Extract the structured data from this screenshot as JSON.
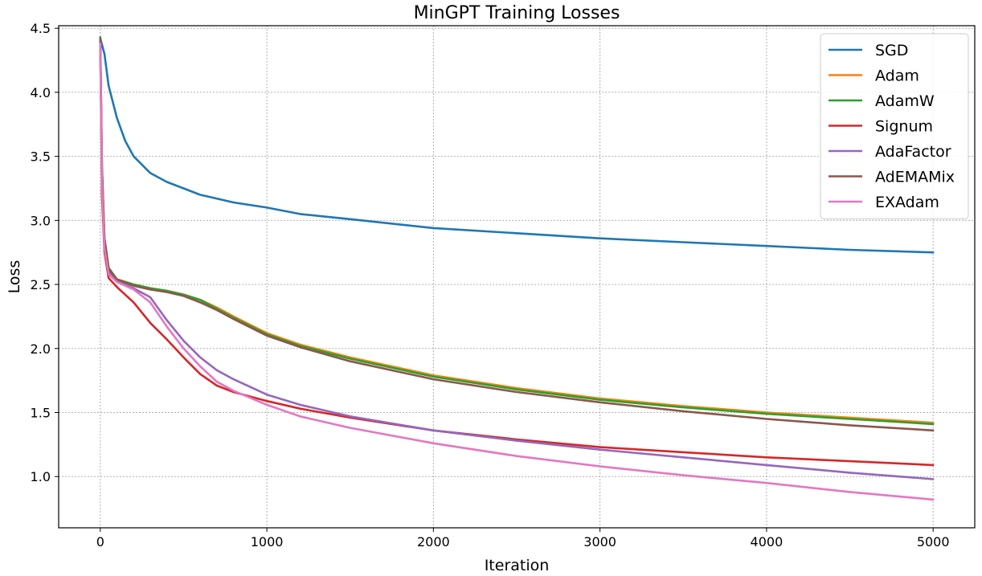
{
  "chart_data": {
    "type": "line",
    "title": "MinGPT Training Losses",
    "xlabel": "Iteration",
    "ylabel": "Loss",
    "xlim": [
      -250,
      5250
    ],
    "ylim": [
      0.6,
      4.52
    ],
    "xticks": [
      0,
      1000,
      2000,
      3000,
      4000,
      5000
    ],
    "xtick_labels": [
      "0",
      "1000",
      "2000",
      "3000",
      "4000",
      "5000"
    ],
    "yticks": [
      1.0,
      1.5,
      2.0,
      2.5,
      3.0,
      3.5,
      4.0,
      4.5
    ],
    "ytick_labels": [
      "1.0",
      "1.5",
      "2.0",
      "2.5",
      "3.0",
      "3.5",
      "4.0",
      "4.5"
    ],
    "grid": true,
    "legend_position": "top-right",
    "series": [
      {
        "name": "SGD",
        "color": "#1f77b4",
        "x": [
          0,
          25,
          50,
          100,
          150,
          200,
          300,
          400,
          500,
          600,
          800,
          1000,
          1200,
          1500,
          2000,
          2500,
          3000,
          3500,
          4000,
          4500,
          5000
        ],
        "y": [
          4.42,
          4.3,
          4.05,
          3.8,
          3.62,
          3.5,
          3.37,
          3.3,
          3.25,
          3.2,
          3.14,
          3.1,
          3.05,
          3.01,
          2.94,
          2.9,
          2.86,
          2.83,
          2.8,
          2.77,
          2.75
        ]
      },
      {
        "name": "Adam",
        "color": "#ff7f0e",
        "x": [
          0,
          10,
          25,
          50,
          100,
          200,
          300,
          400,
          500,
          600,
          700,
          800,
          1000,
          1200,
          1500,
          2000,
          2500,
          3000,
          3500,
          4000,
          4500,
          5000
        ],
        "y": [
          4.4,
          3.4,
          2.85,
          2.62,
          2.54,
          2.5,
          2.47,
          2.45,
          2.42,
          2.38,
          2.32,
          2.25,
          2.12,
          2.03,
          1.93,
          1.79,
          1.69,
          1.61,
          1.55,
          1.5,
          1.46,
          1.42
        ]
      },
      {
        "name": "AdamW",
        "color": "#2ca02c",
        "x": [
          0,
          10,
          25,
          50,
          100,
          200,
          300,
          400,
          500,
          600,
          700,
          800,
          1000,
          1200,
          1500,
          2000,
          2500,
          3000,
          3500,
          4000,
          4500,
          5000
        ],
        "y": [
          4.43,
          3.42,
          2.86,
          2.63,
          2.54,
          2.5,
          2.47,
          2.45,
          2.42,
          2.38,
          2.31,
          2.24,
          2.11,
          2.02,
          1.92,
          1.78,
          1.68,
          1.6,
          1.54,
          1.49,
          1.45,
          1.41
        ]
      },
      {
        "name": "Signum",
        "color": "#d62728",
        "x": [
          0,
          10,
          25,
          50,
          100,
          200,
          300,
          400,
          500,
          600,
          700,
          800,
          1000,
          1200,
          1500,
          2000,
          2500,
          3000,
          3500,
          4000,
          4500,
          5000
        ],
        "y": [
          4.38,
          3.2,
          2.75,
          2.55,
          2.48,
          2.36,
          2.2,
          2.07,
          1.93,
          1.8,
          1.71,
          1.66,
          1.59,
          1.53,
          1.46,
          1.36,
          1.29,
          1.23,
          1.19,
          1.15,
          1.12,
          1.09
        ]
      },
      {
        "name": "AdaFactor",
        "color": "#9467bd",
        "x": [
          0,
          10,
          25,
          50,
          100,
          200,
          300,
          400,
          500,
          600,
          700,
          800,
          1000,
          1200,
          1500,
          2000,
          2500,
          3000,
          3500,
          4000,
          4500,
          5000
        ],
        "y": [
          4.4,
          3.3,
          2.8,
          2.6,
          2.53,
          2.47,
          2.4,
          2.22,
          2.06,
          1.93,
          1.83,
          1.76,
          1.64,
          1.56,
          1.47,
          1.36,
          1.28,
          1.21,
          1.15,
          1.09,
          1.03,
          0.98
        ]
      },
      {
        "name": "AdEMAMix",
        "color": "#8c564b",
        "x": [
          0,
          10,
          25,
          50,
          100,
          200,
          300,
          400,
          500,
          600,
          700,
          800,
          1000,
          1200,
          1500,
          2000,
          2500,
          3000,
          3500,
          4000,
          4500,
          5000
        ],
        "y": [
          4.42,
          3.4,
          2.86,
          2.62,
          2.54,
          2.49,
          2.46,
          2.44,
          2.41,
          2.36,
          2.3,
          2.23,
          2.1,
          2.01,
          1.9,
          1.76,
          1.66,
          1.58,
          1.51,
          1.45,
          1.4,
          1.36
        ]
      },
      {
        "name": "EXAdam",
        "color": "#e377c2",
        "x": [
          0,
          10,
          25,
          50,
          100,
          200,
          300,
          400,
          500,
          600,
          700,
          800,
          1000,
          1200,
          1500,
          2000,
          2500,
          3000,
          3500,
          4000,
          4500,
          5000
        ],
        "y": [
          4.38,
          3.3,
          2.78,
          2.58,
          2.52,
          2.46,
          2.36,
          2.17,
          2.0,
          1.86,
          1.74,
          1.67,
          1.56,
          1.47,
          1.38,
          1.26,
          1.16,
          1.08,
          1.01,
          0.95,
          0.88,
          0.82
        ]
      }
    ]
  }
}
